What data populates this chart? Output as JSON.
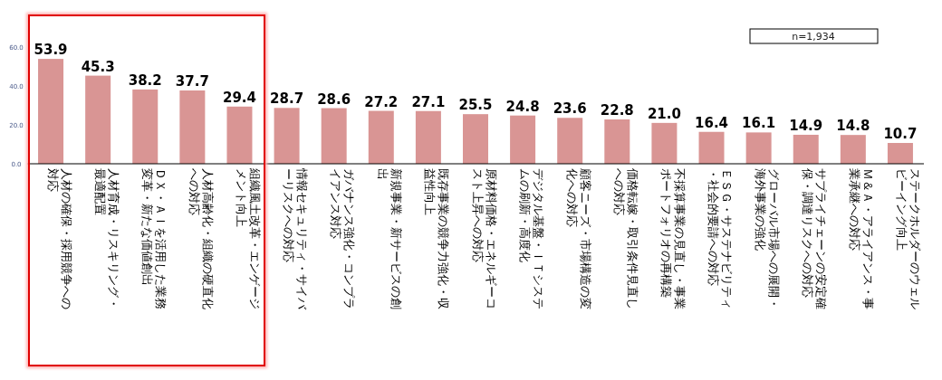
{
  "chart_data": {
    "type": "bar",
    "categories": [
      "人材の確保・採用競争への対応",
      "人材育成・リスキリング・最適配置",
      "ＤＸ・ＡＩを活用した業務変革・新たな価値創出",
      "人材高齢化・組織の硬直化への対応",
      "組織風土改革・エンゲージメント向上",
      "情報セキュリティ・サイバーリスクへの対応",
      "ガバナンス強化・コンプライアンス対応",
      "新規事業・新サービスの創出",
      "既存事業の競争力強化・収益性向上",
      "原材料価格・エネルギーコスト上昇への対応",
      "デジタル基盤・ＩＴシステムの刷新・高度化",
      "顧客ニーズ・市場構造の変化への対応",
      "価格転嫁・取引条件見直しへの対応",
      "不採算事業の見直し・事業ポートフォリオの再構築",
      "ＥＳＧ・サステナビリティ・社会的要請への対応",
      "グローバル市場への展開・海外事業の強化",
      "サプライチェーンの安定確保・調達リスクへの対応",
      "Ｍ＆Ａ・アライアンス・事業承継への対応",
      "ステークホルダーのウェルビーイング向上"
    ],
    "values": [
      53.9,
      45.3,
      38.2,
      37.7,
      29.4,
      28.7,
      28.6,
      27.2,
      27.1,
      25.5,
      24.8,
      23.6,
      22.8,
      21.0,
      16.4,
      16.1,
      14.9,
      14.8,
      10.7
    ],
    "color": "#d99594",
    "ylim": [
      0,
      77
    ],
    "yticks": [
      {
        "value": 0,
        "label": "0.0"
      },
      {
        "value": 20,
        "label": "20.0"
      },
      {
        "value": 40,
        "label": "40.0"
      },
      {
        "value": 60,
        "label": "60.0"
      }
    ],
    "data_labels": true,
    "value_labels": [
      "53.9",
      "45.3",
      "38.2",
      "37.7",
      "29.4",
      "28.7",
      "28.6",
      "27.2",
      "27.1",
      "25.5",
      "24.8",
      "23.6",
      "22.8",
      "21.0",
      "16.4",
      "16.1",
      "14.9",
      "14.8",
      "10.7"
    ],
    "annotations": [
      "n=1,934"
    ]
  }
}
